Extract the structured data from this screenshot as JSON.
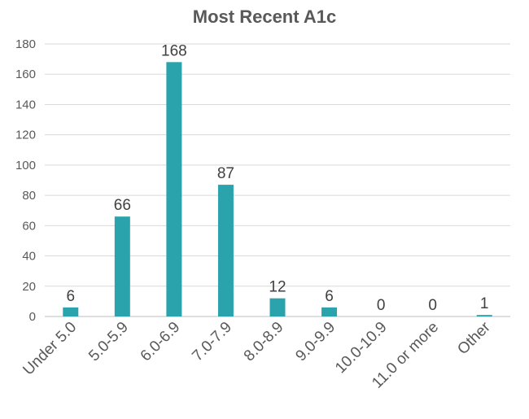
{
  "chart_data": {
    "type": "bar",
    "title": "Most Recent A1c",
    "xlabel": "",
    "ylabel": "",
    "categories": [
      "Under 5.0",
      "5.0-5.9",
      "6.0-6.9",
      "7.0-7.9",
      "8.0-8.9",
      "9.0-9.9",
      "10.0-10.9",
      "11.0 or more",
      "Other"
    ],
    "values": [
      6,
      66,
      168,
      87,
      12,
      6,
      0,
      0,
      1
    ],
    "ylim": [
      0,
      180
    ],
    "yticks": [
      0,
      20,
      40,
      60,
      80,
      100,
      120,
      140,
      160,
      180
    ],
    "grid": true,
    "legend": "none",
    "data_labels": true,
    "bar_color": "#2aa3ad"
  }
}
